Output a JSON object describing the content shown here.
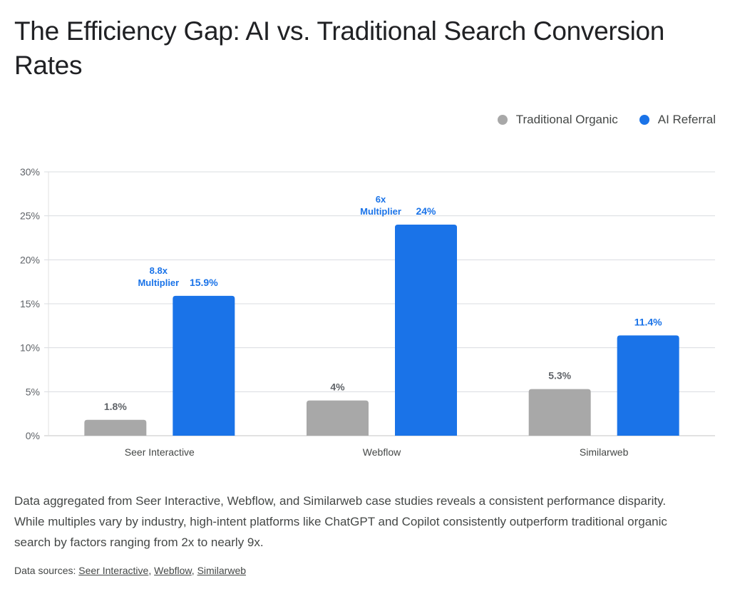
{
  "title": "The Efficiency Gap: AI vs. Traditional Search Conversion Rates",
  "legend": [
    {
      "label": "Traditional Organic",
      "color": "#a8a8a8"
    },
    {
      "label": "AI Referral",
      "color": "#1a73e8"
    }
  ],
  "description": "Data aggregated from Seer Interactive, Webflow, and Similarweb case studies reveals a consistent performance disparity. While multiples vary by industry, high-intent platforms like ChatGPT and Copilot consistently outperform traditional organic search by factors ranging from 2x to nearly 9x.",
  "sources": {
    "prefix": "Data sources: ",
    "links": [
      "Seer Interactive",
      "Webflow",
      "Similarweb"
    ],
    "separator": ", "
  },
  "chart_data": {
    "type": "bar",
    "title": "The Efficiency Gap: AI vs. Traditional Search Conversion Rates",
    "xlabel": "",
    "ylabel": "",
    "categories": [
      "Seer Interactive",
      "Webflow",
      "Similarweb"
    ],
    "ylim": [
      0,
      30
    ],
    "yticks": [
      0,
      5,
      10,
      15,
      20,
      25,
      30
    ],
    "ytick_labels": [
      "0%",
      "5%",
      "10%",
      "15%",
      "20%",
      "25%",
      "30%"
    ],
    "grid": true,
    "legend_position": "top-right",
    "series": [
      {
        "name": "Traditional Organic",
        "color": "#a8a8a8",
        "label_color": "#5f6368",
        "values": [
          1.8,
          4,
          5.3
        ],
        "labels": [
          "1.8%",
          "4%",
          "5.3%"
        ]
      },
      {
        "name": "AI Referral",
        "color": "#1a73e8",
        "label_color": "#1a73e8",
        "values": [
          15.9,
          24,
          11.4
        ],
        "labels": [
          "15.9%",
          "24%",
          "11.4%"
        ]
      }
    ],
    "annotations": [
      {
        "category": "Seer Interactive",
        "lines": [
          "8.8x",
          "Multiplier"
        ],
        "color": "#1a73e8"
      },
      {
        "category": "Webflow",
        "lines": [
          "6x",
          "Multiplier"
        ],
        "color": "#1a73e8"
      }
    ]
  }
}
